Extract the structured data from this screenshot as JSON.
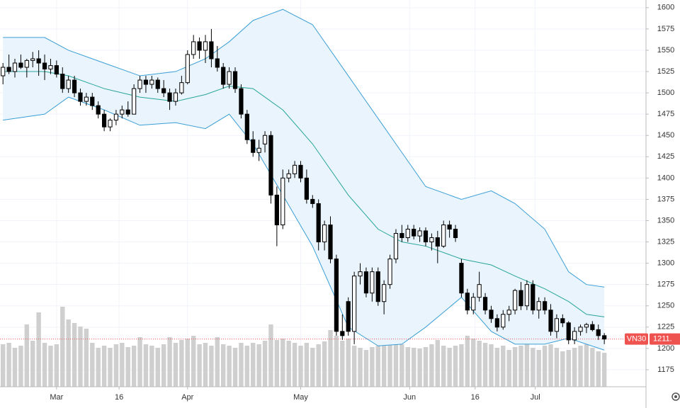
{
  "chart_data": {
    "type": "candlestick",
    "ylim": [
      1155,
      1609
    ],
    "yticks": [
      1175,
      1200,
      1225,
      1250,
      1275,
      1300,
      1325,
      1350,
      1375,
      1400,
      1425,
      1450,
      1475,
      1500,
      1525,
      1550,
      1575,
      1600
    ],
    "xlim": [
      -0.5,
      108
    ],
    "xticks": [
      {
        "value": 9,
        "label": "Mar"
      },
      {
        "value": 19.5,
        "label": "16"
      },
      {
        "value": 31,
        "label": "Apr"
      },
      {
        "value": 50,
        "label": "May"
      },
      {
        "value": 68.3,
        "label": "Jun"
      },
      {
        "value": 79.3,
        "label": "16"
      },
      {
        "value": 89.4,
        "label": "Jul"
      }
    ],
    "grid": true,
    "up_color": "#ffffff",
    "down_color": "#000000",
    "open": [
      1520,
      1530,
      1525,
      1535,
      1530,
      1538,
      1540,
      1535,
      1528,
      1532,
      1522,
      1505,
      1515,
      1500,
      1490,
      1495,
      1485,
      1475,
      1460,
      1468,
      1475,
      1480,
      1475,
      1505,
      1515,
      1510,
      1515,
      1505,
      1500,
      1490,
      1500,
      1512,
      1545,
      1560,
      1550,
      1560,
      1540,
      1530,
      1510,
      1525,
      1505,
      1475,
      1445,
      1430,
      1440,
      1450,
      1380,
      1345,
      1400,
      1405,
      1415,
      1400,
      1375,
      1370,
      1325,
      1345,
      1305,
      1220,
      1255,
      1220,
      1285,
      1290,
      1265,
      1290,
      1255,
      1275,
      1305,
      1335,
      1330,
      1340,
      1332,
      1338,
      1325,
      1330,
      1320,
      1345,
      1340,
      1300,
      1265,
      1245,
      1260,
      1260,
      1245,
      1235,
      1225,
      1240,
      1245,
      1268,
      1250,
      1275,
      1245,
      1255,
      1245,
      1220,
      1235,
      1230,
      1210,
      1220,
      1225,
      1228,
      1222,
      1215
    ],
    "high": [
      1535,
      1545,
      1540,
      1545,
      1540,
      1548,
      1550,
      1545,
      1540,
      1538,
      1530,
      1520,
      1520,
      1505,
      1500,
      1500,
      1490,
      1480,
      1470,
      1480,
      1485,
      1490,
      1510,
      1520,
      1520,
      1520,
      1518,
      1515,
      1505,
      1505,
      1520,
      1550,
      1568,
      1565,
      1568,
      1575,
      1555,
      1535,
      1530,
      1530,
      1510,
      1480,
      1455,
      1445,
      1455,
      1455,
      1390,
      1410,
      1410,
      1420,
      1420,
      1410,
      1380,
      1375,
      1350,
      1355,
      1310,
      1240,
      1260,
      1290,
      1300,
      1295,
      1295,
      1295,
      1280,
      1310,
      1340,
      1345,
      1345,
      1345,
      1342,
      1342,
      1335,
      1338,
      1350,
      1350,
      1345,
      1305,
      1270,
      1265,
      1290,
      1265,
      1250,
      1240,
      1245,
      1250,
      1270,
      1278,
      1280,
      1280,
      1260,
      1260,
      1252,
      1240,
      1240,
      1232,
      1225,
      1228,
      1230,
      1232,
      1228,
      1218
    ],
    "low": [
      1510,
      1522,
      1518,
      1528,
      1518,
      1530,
      1520,
      1515,
      1522,
      1518,
      1500,
      1500,
      1495,
      1485,
      1485,
      1480,
      1470,
      1455,
      1455,
      1462,
      1470,
      1472,
      1475,
      1500,
      1500,
      1505,
      1500,
      1495,
      1480,
      1485,
      1498,
      1510,
      1540,
      1540,
      1535,
      1530,
      1525,
      1505,
      1505,
      1500,
      1470,
      1440,
      1425,
      1420,
      1430,
      1370,
      1320,
      1340,
      1395,
      1400,
      1395,
      1370,
      1365,
      1315,
      1315,
      1300,
      1215,
      1210,
      1215,
      1205,
      1275,
      1260,
      1255,
      1250,
      1240,
      1270,
      1300,
      1325,
      1325,
      1328,
      1325,
      1320,
      1315,
      1300,
      1318,
      1330,
      1325,
      1260,
      1240,
      1240,
      1255,
      1240,
      1230,
      1220,
      1222,
      1232,
      1240,
      1245,
      1245,
      1240,
      1235,
      1240,
      1215,
      1212,
      1225,
      1205,
      1205,
      1215,
      1218,
      1220,
      1210,
      1205
    ],
    "close": [
      1530,
      1525,
      1535,
      1530,
      1538,
      1540,
      1535,
      1528,
      1532,
      1522,
      1505,
      1515,
      1500,
      1490,
      1495,
      1485,
      1475,
      1460,
      1468,
      1475,
      1480,
      1475,
      1505,
      1515,
      1510,
      1515,
      1505,
      1500,
      1490,
      1500,
      1512,
      1545,
      1560,
      1550,
      1560,
      1540,
      1530,
      1510,
      1525,
      1505,
      1475,
      1445,
      1430,
      1435,
      1450,
      1380,
      1345,
      1400,
      1405,
      1415,
      1400,
      1375,
      1370,
      1325,
      1345,
      1305,
      1220,
      1215,
      1220,
      1285,
      1290,
      1265,
      1290,
      1255,
      1275,
      1305,
      1335,
      1330,
      1340,
      1332,
      1338,
      1325,
      1330,
      1320,
      1345,
      1340,
      1330,
      1265,
      1245,
      1260,
      1275,
      1245,
      1235,
      1225,
      1240,
      1245,
      1268,
      1250,
      1275,
      1245,
      1255,
      1245,
      1220,
      1235,
      1230,
      1210,
      1220,
      1225,
      1228,
      1222,
      1215,
      1211
    ],
    "volume": {
      "color": "#cfcfcf",
      "vlim": [
        0,
        150
      ],
      "values": [
        60,
        62,
        55,
        58,
        88,
        65,
        105,
        62,
        58,
        60,
        113,
        95,
        90,
        85,
        82,
        62,
        55,
        58,
        55,
        60,
        62,
        56,
        58,
        70,
        60,
        58,
        55,
        60,
        70,
        62,
        66,
        68,
        72,
        60,
        62,
        58,
        70,
        60,
        58,
        55,
        62,
        58,
        62,
        60,
        65,
        88,
        66,
        68,
        65,
        62,
        58,
        62,
        55,
        60,
        64,
        80,
        72,
        65,
        68,
        58,
        55,
        52,
        56,
        58,
        62,
        64,
        70,
        60,
        56,
        55,
        54,
        56,
        60,
        66,
        58,
        55,
        58,
        60,
        72,
        68,
        65,
        62,
        60,
        55,
        58,
        52,
        56,
        58,
        60,
        55,
        52,
        58,
        60,
        55,
        50,
        52,
        55,
        58,
        60,
        55,
        50,
        48
      ]
    },
    "bands": {
      "x": [
        0,
        7,
        11,
        17,
        23,
        29,
        34,
        38,
        42,
        47,
        52,
        58,
        63,
        67,
        71,
        77,
        82,
        86,
        91,
        95,
        98,
        101
      ],
      "fill": "#eaf4fc",
      "upper": {
        "color": "#3a9fd6",
        "values": [
          1565,
          1565,
          1550,
          1535,
          1520,
          1525,
          1540,
          1560,
          1585,
          1598,
          1580,
          1520,
          1470,
          1430,
          1390,
          1375,
          1385,
          1370,
          1340,
          1290,
          1275,
          1272
        ]
      },
      "middle": {
        "color": "#26a69a",
        "values": [
          1525,
          1525,
          1520,
          1505,
          1495,
          1490,
          1498,
          1508,
          1505,
          1480,
          1440,
          1380,
          1340,
          1325,
          1320,
          1305,
          1298,
          1285,
          1270,
          1255,
          1240,
          1237
        ]
      },
      "lower": {
        "color": "#3a9fd6",
        "values": [
          1468,
          1475,
          1495,
          1480,
          1462,
          1465,
          1458,
          1475,
          1440,
          1380,
          1320,
          1225,
          1203,
          1205,
          1225,
          1260,
          1220,
          1205,
          1205,
          1212,
          1205,
          1198
        ]
      }
    },
    "price_line": {
      "name": "VN30",
      "value": 1211,
      "label": "1211.",
      "color": "#ef5350"
    }
  }
}
